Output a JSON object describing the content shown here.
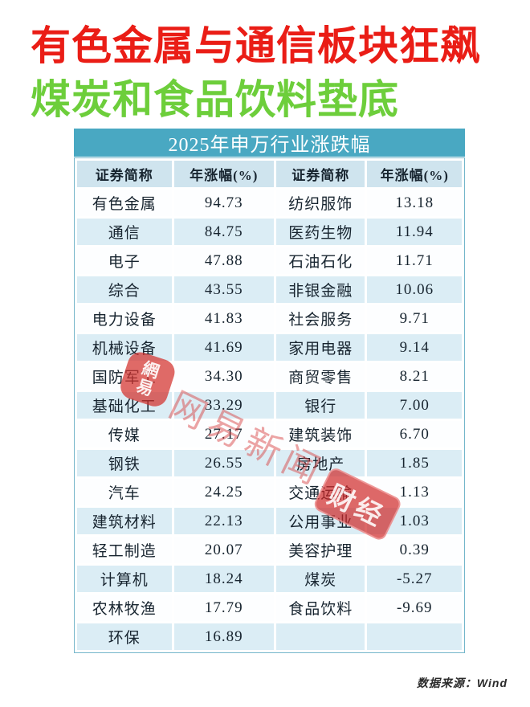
{
  "headline": {
    "line1": "有色金属与通信板块狂飙",
    "line2": "煤炭和食品饮料垫底",
    "line1_color": "#ea1d16",
    "line2_color": "#6dce3b"
  },
  "table": {
    "title": "2025年申万行业涨跌幅",
    "headers": [
      "证券简称",
      "年涨幅(%)",
      "证券简称",
      "年涨幅(%)"
    ],
    "rows": [
      [
        "有色金属",
        "94.73",
        "纺织服饰",
        "13.18"
      ],
      [
        "通信",
        "84.75",
        "医药生物",
        "11.94"
      ],
      [
        "电子",
        "47.88",
        "石油石化",
        "11.71"
      ],
      [
        "综合",
        "43.55",
        "非银金融",
        "10.06"
      ],
      [
        "电力设备",
        "41.83",
        "社会服务",
        "9.71"
      ],
      [
        "机械设备",
        "41.69",
        "家用电器",
        "9.14"
      ],
      [
        "国防军工",
        "34.30",
        "商贸零售",
        "8.21"
      ],
      [
        "基础化工",
        "33.29",
        "银行",
        "7.00"
      ],
      [
        "传媒",
        "27.17",
        "建筑装饰",
        "6.70"
      ],
      [
        "钢铁",
        "26.55",
        "房地产",
        "1.85"
      ],
      [
        "汽车",
        "24.25",
        "交通运输",
        "1.13"
      ],
      [
        "建筑材料",
        "22.13",
        "公用事业",
        "1.03"
      ],
      [
        "轻工制造",
        "20.07",
        "美容护理",
        "0.39"
      ],
      [
        "计算机",
        "18.24",
        "煤炭",
        "-5.27"
      ],
      [
        "农林牧渔",
        "17.79",
        "食品饮料",
        "-9.69"
      ],
      [
        "环保",
        "16.89",
        "",
        ""
      ]
    ],
    "colors": {
      "band_bg": "#49a8c2",
      "header_bg": "#cfe4ee",
      "stripe_bg": "#dbedf5",
      "row_bg": "#fdfeff",
      "text": "#17242f",
      "border": "#74b6ca"
    }
  },
  "watermark": {
    "logo_text_top": "網",
    "logo_text_bottom": "易",
    "text": "网易新闻",
    "badge": "财经",
    "color": "#d84040"
  },
  "footer": {
    "source": "数据来源：Wind"
  }
}
